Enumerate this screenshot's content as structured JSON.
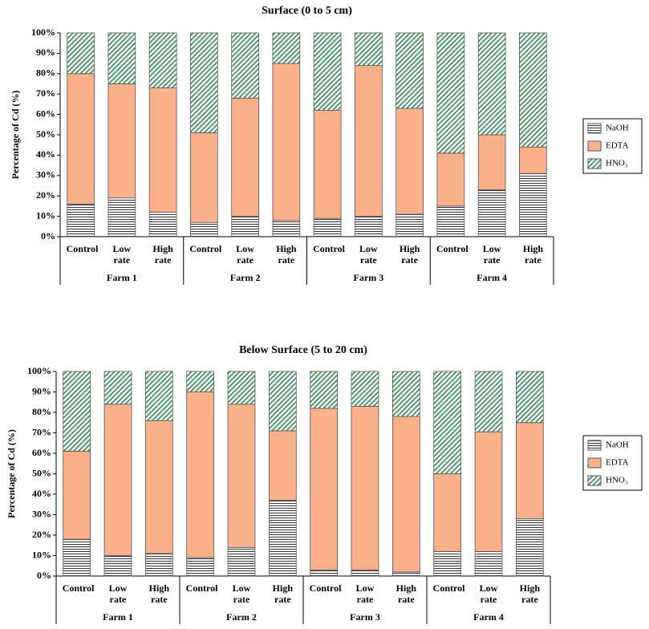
{
  "chart_data": [
    {
      "type": "bar",
      "stacked": true,
      "title": "Surface (0 to 5 cm)",
      "ylabel": "Percentage of Cd (%)",
      "categories": [
        "Control",
        "Low rate",
        "High rate",
        "Control",
        "Low rate",
        "High rate",
        "Control",
        "Low rate",
        "High rate",
        "Control",
        "Low rate",
        "High rate"
      ],
      "groups": [
        "Farm 1",
        "Farm 2",
        "Farm 3",
        "Farm 4"
      ],
      "series": [
        {
          "name": "NaOH",
          "color": "#000000",
          "pattern": "horizontal",
          "values": [
            16,
            19,
            12,
            7,
            10,
            8,
            9,
            10,
            11,
            15,
            23,
            31
          ]
        },
        {
          "name": "EDTA",
          "color": "#fbb08a",
          "pattern": "solid",
          "values": [
            64,
            56,
            61,
            44,
            58,
            77,
            53,
            74,
            52,
            26,
            27,
            13
          ]
        },
        {
          "name": "HNO₃",
          "color": "#2e8b57",
          "pattern": "diagonal",
          "values": [
            20,
            25,
            27,
            49,
            32,
            15,
            38,
            16,
            37,
            59,
            50,
            56
          ]
        }
      ],
      "ylim": [
        0,
        100
      ],
      "yticks": [
        {
          "value": 0,
          "label": "0%"
        },
        {
          "value": 10,
          "label": "10%"
        },
        {
          "value": 20,
          "label": "20%"
        },
        {
          "value": 30,
          "label": "30%"
        },
        {
          "value": 40,
          "label": "40%"
        },
        {
          "value": 50,
          "label": "50%"
        },
        {
          "value": 60,
          "label": "60%"
        },
        {
          "value": 70,
          "label": "70%"
        },
        {
          "value": 80,
          "label": "80%"
        },
        {
          "value": 90,
          "label": "90%"
        },
        {
          "value": 100,
          "label": "100%"
        }
      ],
      "grid": false,
      "legend": "right"
    },
    {
      "type": "bar",
      "stacked": true,
      "title": "Below Surface (5 to 20 cm)",
      "ylabel": "Percentage of Cd (%)",
      "categories": [
        "Control",
        "Low rate",
        "High rate",
        "Control",
        "Low rate",
        "High rate",
        "Control",
        "Low rate",
        "High rate",
        "Control",
        "Low rate",
        "High rate"
      ],
      "groups": [
        "Farm 1",
        "Farm 2",
        "Farm 3",
        "Farm 4"
      ],
      "series": [
        {
          "name": "NaOH",
          "color": "#000000",
          "pattern": "horizontal",
          "values": [
            18,
            10,
            11,
            9,
            14,
            37,
            3,
            3,
            2,
            12,
            12,
            28
          ]
        },
        {
          "name": "EDTA",
          "color": "#fbb08a",
          "pattern": "solid",
          "values": [
            43,
            74,
            65,
            81,
            70,
            34,
            79,
            80,
            76,
            38,
            58.5,
            47
          ]
        },
        {
          "name": "HNO₃",
          "color": "#2e8b57",
          "pattern": "diagonal",
          "values": [
            39,
            16,
            24,
            10,
            16,
            29,
            18,
            17,
            22,
            50,
            29.5,
            25
          ]
        }
      ],
      "ylim": [
        0,
        100
      ],
      "yticks": [
        {
          "value": 0,
          "label": "0%"
        },
        {
          "value": 10,
          "label": "10%"
        },
        {
          "value": 20,
          "label": "20%"
        },
        {
          "value": 30,
          "label": "30%"
        },
        {
          "value": 40,
          "label": "40%"
        },
        {
          "value": 50,
          "label": "50%"
        },
        {
          "value": 60,
          "label": "60%"
        },
        {
          "value": 70,
          "label": "70%"
        },
        {
          "value": 80,
          "label": "80%"
        },
        {
          "value": 90,
          "label": "90%"
        },
        {
          "value": 100,
          "label": "100%"
        }
      ],
      "grid": false,
      "legend": "right"
    }
  ]
}
